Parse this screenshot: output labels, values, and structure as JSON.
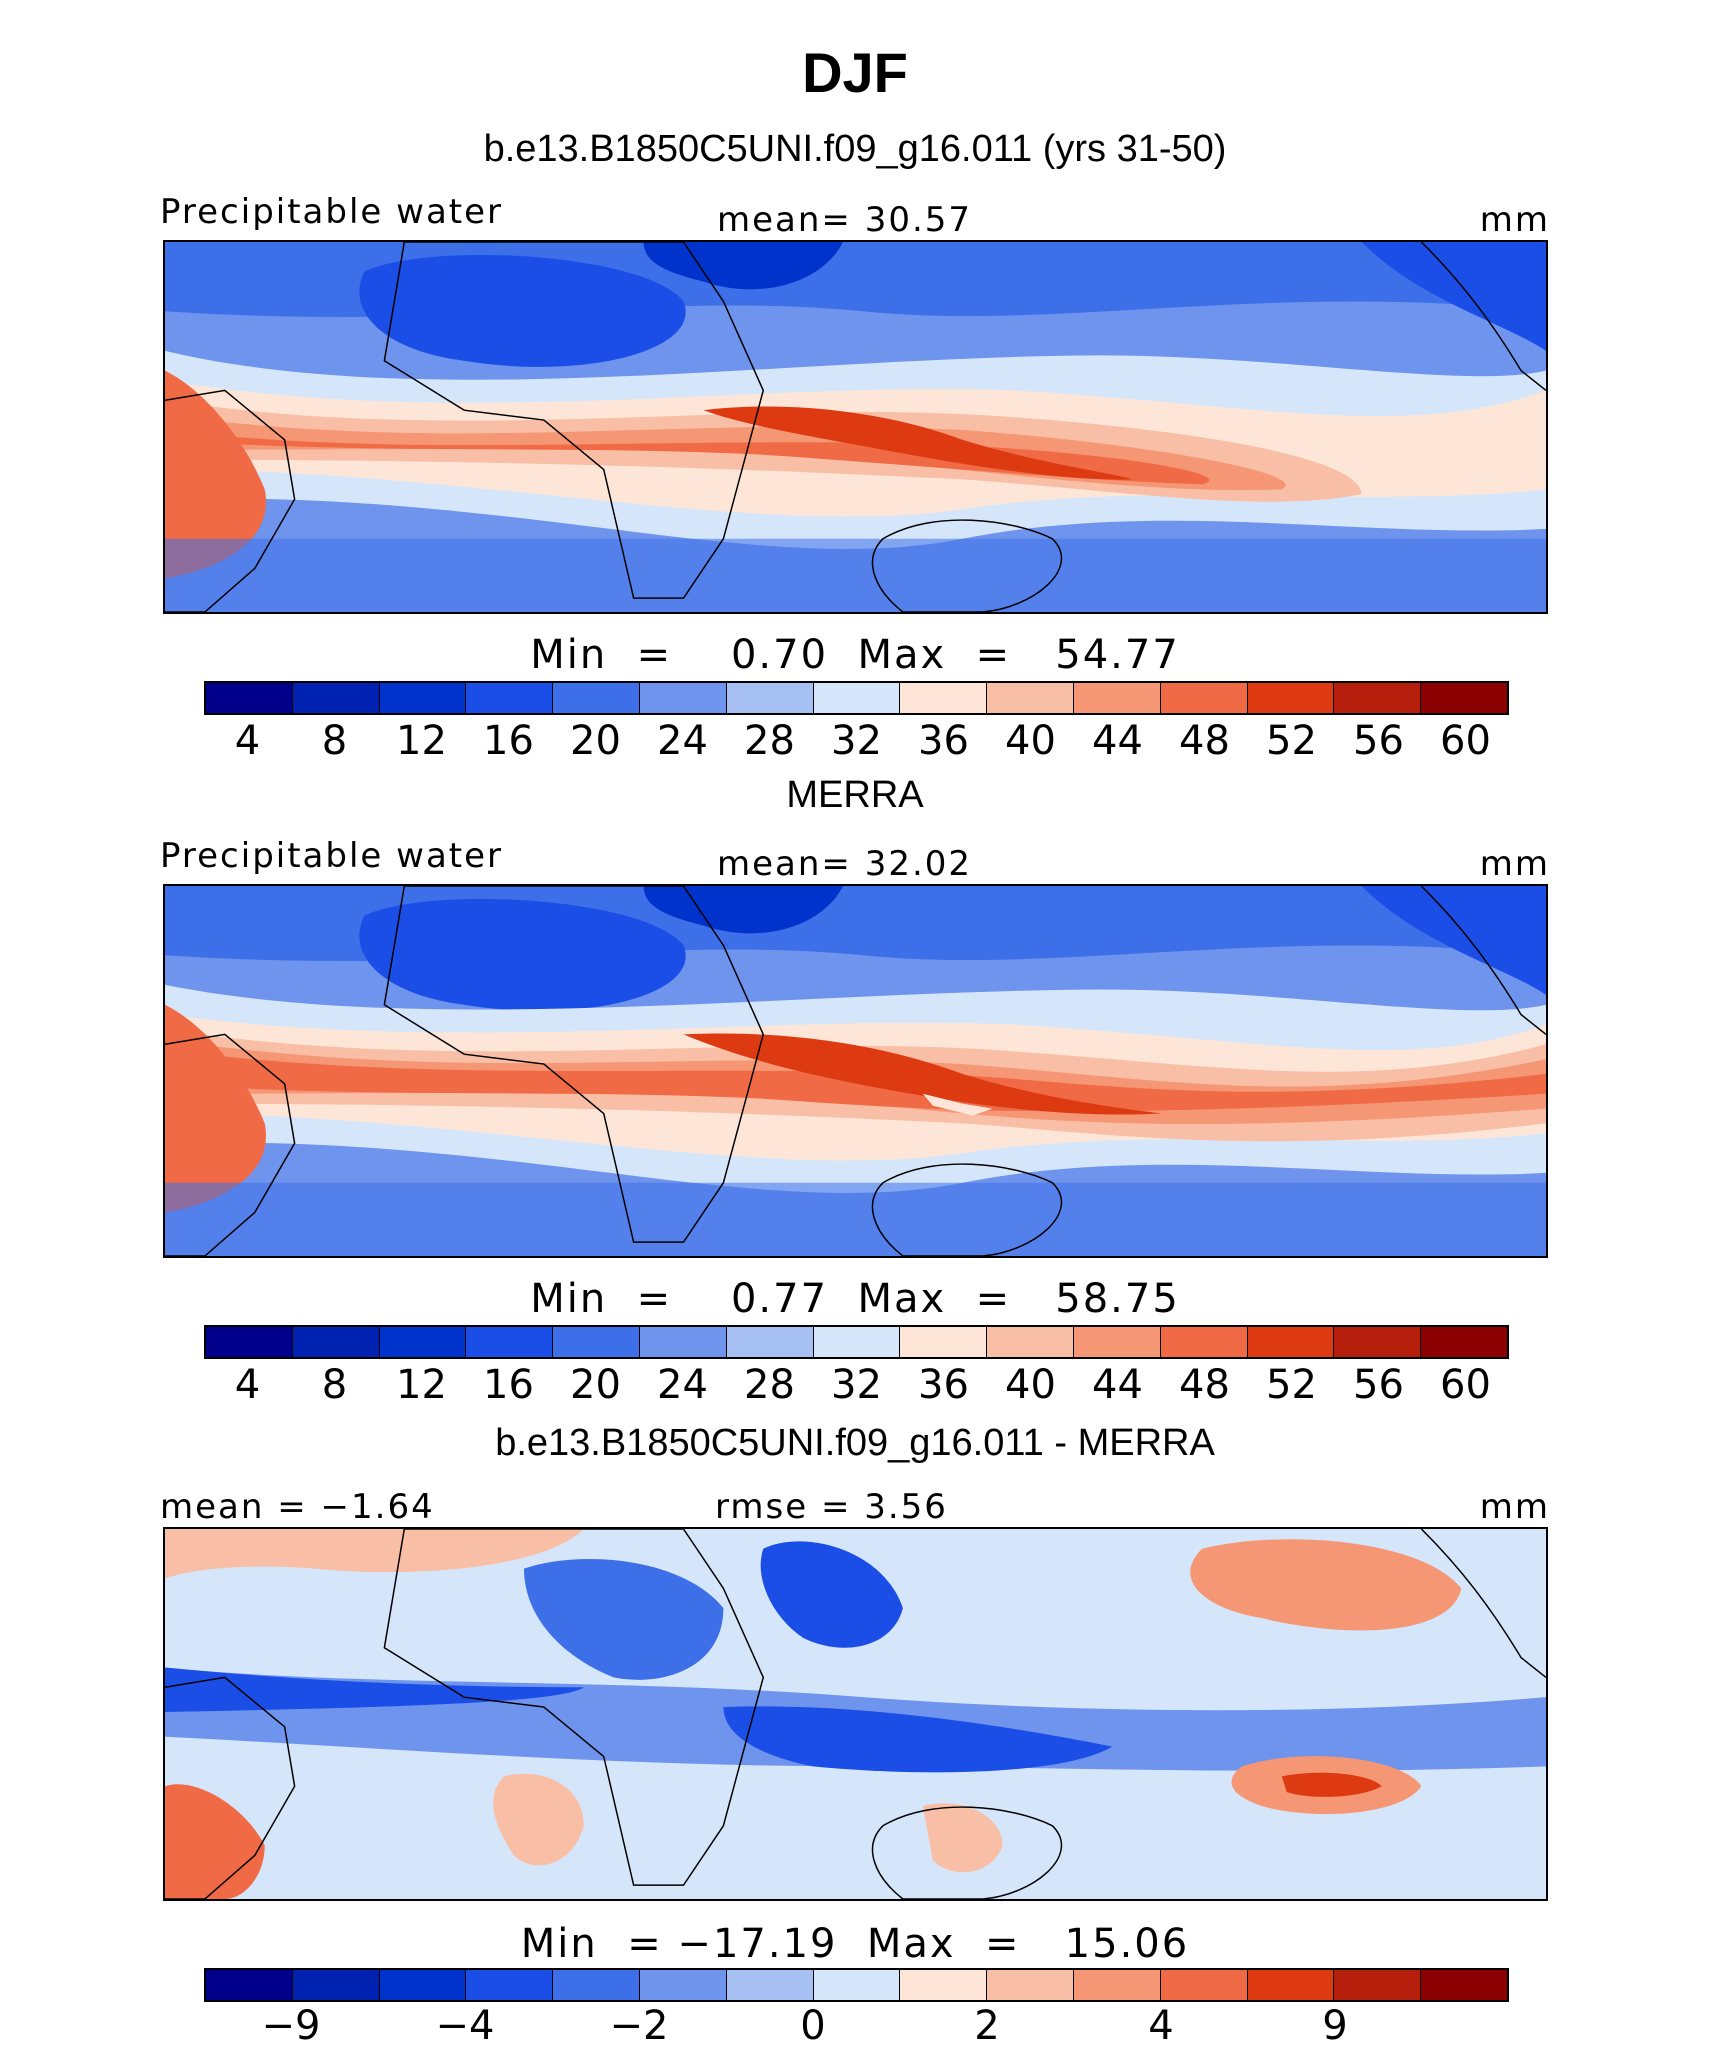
{
  "title": "DJF",
  "panels": [
    {
      "title": "b.e13.B1850C5UNI.f09_g16.011 (yrs 31-50)",
      "left_label": "Precipitable water",
      "center_label": "mean=   30.57",
      "right_label": "mm",
      "minmax": "Min  =    0.70  Max  =   54.77",
      "colorbar_ticks": [
        "4",
        "8",
        "12",
        "16",
        "20",
        "24",
        "28",
        "32",
        "36",
        "40",
        "44",
        "48",
        "52",
        "56",
        "60"
      ]
    },
    {
      "title": "MERRA",
      "left_label": "Precipitable water",
      "center_label": "mean=   32.02",
      "right_label": "mm",
      "minmax": "Min  =    0.77  Max  =   58.75",
      "colorbar_ticks": [
        "4",
        "8",
        "12",
        "16",
        "20",
        "24",
        "28",
        "32",
        "36",
        "40",
        "44",
        "48",
        "52",
        "56",
        "60"
      ]
    },
    {
      "title": "b.e13.B1850C5UNI.f09_g16.011 - MERRA",
      "left_label": "mean =  −1.64",
      "center_label": "rmse =    3.56",
      "right_label": "mm",
      "minmax": "Min  = −17.19  Max  =   15.06",
      "colorbar_ticks": [
        "−9",
        "−4",
        "−2",
        "0",
        "2",
        "4",
        "9"
      ]
    }
  ],
  "colorbar_colors": [
    "#00008b",
    "#0022b0",
    "#0033cc",
    "#1a4ee6",
    "#3d6fe8",
    "#6f94ed",
    "#a7c0f4",
    "#d6e6fa",
    "#fde6d8",
    "#f8bfa6",
    "#f59675",
    "#f06a45",
    "#dd3a12",
    "#b51e0a",
    "#8b0000"
  ],
  "chart_data": [
    {
      "type": "heatmap",
      "title": "b.e13.B1850C5UNI.f09_g16.011 (yrs 31-50)",
      "variable": "Precipitable water",
      "units": "mm",
      "mean": 30.57,
      "min": 0.7,
      "max": 54.77,
      "levels": [
        4,
        8,
        12,
        16,
        20,
        24,
        28,
        32,
        36,
        40,
        44,
        48,
        52,
        56,
        60
      ]
    },
    {
      "type": "heatmap",
      "title": "MERRA",
      "variable": "Precipitable water",
      "units": "mm",
      "mean": 32.02,
      "min": 0.77,
      "max": 58.75,
      "levels": [
        4,
        8,
        12,
        16,
        20,
        24,
        28,
        32,
        36,
        40,
        44,
        48,
        52,
        56,
        60
      ]
    },
    {
      "type": "heatmap",
      "title": "b.e13.B1850C5UNI.f09_g16.011 - MERRA",
      "units": "mm",
      "mean": -1.64,
      "rmse": 3.56,
      "min": -17.19,
      "max": 15.06,
      "labeled_levels": [
        -9,
        -4,
        -2,
        0,
        2,
        4,
        9
      ]
    }
  ]
}
